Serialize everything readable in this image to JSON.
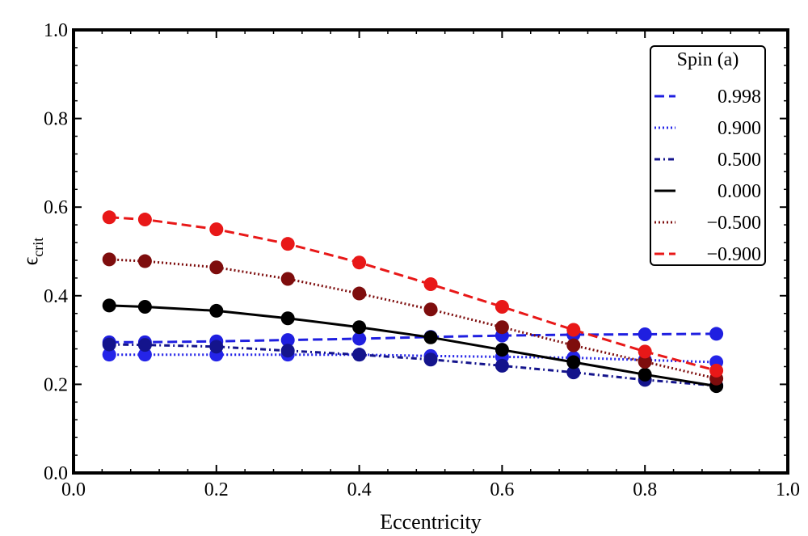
{
  "chart_data": {
    "type": "line",
    "title": "",
    "xlabel": "Eccentricity",
    "ylabel_main": "ϵ",
    "ylabel_sub": "crit",
    "xlim": [
      0.0,
      1.0
    ],
    "ylim": [
      0.0,
      1.0
    ],
    "xticks": [
      0.0,
      0.2,
      0.4,
      0.6,
      0.8,
      1.0
    ],
    "yticks": [
      0.0,
      0.2,
      0.4,
      0.6,
      0.8,
      1.0
    ],
    "xtick_labels": [
      "0.0",
      "0.2",
      "0.4",
      "0.6",
      "0.8",
      "1.0"
    ],
    "ytick_labels": [
      "0.0",
      "0.2",
      "0.4",
      "0.6",
      "0.8",
      "1.0"
    ],
    "grid": false,
    "legend": {
      "title": "Spin (a)",
      "placement": "top-right"
    },
    "x": [
      0.05,
      0.1,
      0.2,
      0.3,
      0.4,
      0.5,
      0.6,
      0.7,
      0.8,
      0.9
    ],
    "series": [
      {
        "name": "0.998",
        "label": "0.998",
        "color": "#1f1fe0",
        "dash": "dashed",
        "values": [
          0.295,
          0.295,
          0.297,
          0.3,
          0.303,
          0.307,
          0.31,
          0.312,
          0.313,
          0.314
        ]
      },
      {
        "name": "0.900",
        "label": "0.900",
        "color": "#2424e8",
        "dash": "dotted",
        "values": [
          0.267,
          0.267,
          0.267,
          0.267,
          0.267,
          0.264,
          0.262,
          0.26,
          0.255,
          0.25
        ]
      },
      {
        "name": "0.500",
        "label": "0.500",
        "color": "#14148c",
        "dash": "dashdot",
        "values": [
          0.29,
          0.289,
          0.285,
          0.276,
          0.267,
          0.256,
          0.242,
          0.227,
          0.21,
          0.197
        ]
      },
      {
        "name": "0.000",
        "label": "0.000",
        "color": "#000000",
        "dash": "solid",
        "values": [
          0.378,
          0.375,
          0.366,
          0.349,
          0.329,
          0.306,
          0.278,
          0.25,
          0.222,
          0.196
        ]
      },
      {
        "name": "-0.500",
        "label": "−0.500",
        "color": "#7e0d0d",
        "dash": "dotted",
        "values": [
          0.482,
          0.478,
          0.464,
          0.438,
          0.405,
          0.369,
          0.329,
          0.288,
          0.251,
          0.213
        ]
      },
      {
        "name": "-0.900",
        "label": "−0.900",
        "color": "#e81818",
        "dash": "dashed",
        "values": [
          0.577,
          0.572,
          0.55,
          0.517,
          0.475,
          0.426,
          0.375,
          0.323,
          0.274,
          0.231
        ]
      }
    ]
  }
}
